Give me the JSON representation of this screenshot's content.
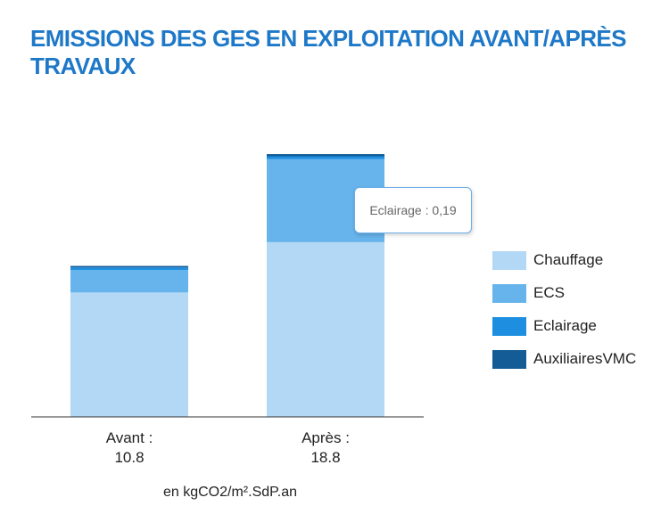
{
  "title": "EMISSIONS DES GES EN EXPLOITATION AVANT/APRÈS TRAVAUX",
  "chart_data": {
    "type": "bar",
    "stacked": true,
    "title": "EMISSIONS DES GES EN EXPLOITATION AVANT/APRÈS TRAVAUX",
    "xlabel": "en kgCO2/m².SdP.an",
    "ylabel": "",
    "ylim": [
      0,
      18.8
    ],
    "grid": false,
    "legend_position": "right",
    "categories": [
      {
        "name": "Avant :",
        "total": "10.8"
      },
      {
        "name": "Après :",
        "total": "18.8"
      }
    ],
    "series": [
      {
        "name": "Chauffage",
        "color": "#b3d8f5",
        "values": [
          8.9,
          12.5
        ]
      },
      {
        "name": "ECS",
        "color": "#67b4ec",
        "values": [
          1.6,
          5.95
        ]
      },
      {
        "name": "Eclairage",
        "color": "#1e8fe0",
        "values": [
          0.19,
          0.19
        ]
      },
      {
        "name": "AuxiliairesVMC",
        "color": "#135c96",
        "values": [
          0.11,
          0.16
        ]
      }
    ]
  },
  "tooltip": {
    "text": "Eclairage : 0,19"
  }
}
